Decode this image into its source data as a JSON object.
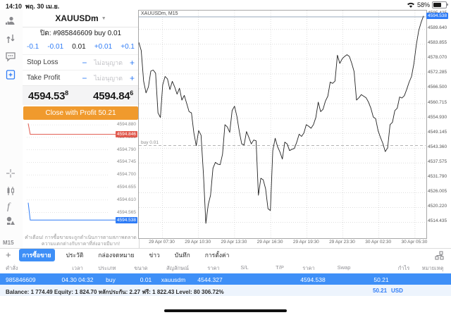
{
  "status_bar": {
    "time": "14:10",
    "date": "พฤ. 30 เม.ย.",
    "battery": "58%"
  },
  "sidebar": {
    "icons": [
      "trader-icon",
      "trade-arrows-icon",
      "chat-icon",
      "new-order-icon",
      "crosshair-icon",
      "candles-icon",
      "indicator-f-icon",
      "objects-icon"
    ],
    "timeframe": "M15"
  },
  "trade_panel": {
    "symbol": "XAUUSDm",
    "position_line": "ปิด: #985846609 buy 0.01",
    "volume": {
      "minus_big": "-0.1",
      "minus_small": "-0.01",
      "value": "0.01",
      "plus_small": "+0.01",
      "plus_big": "+0.1"
    },
    "stop_loss": {
      "label": "Stop Loss",
      "minus": "−",
      "placeholder": "ไม่อนุญาต",
      "plus": "+"
    },
    "take_profit": {
      "label": "Take Profit",
      "minus": "−",
      "placeholder": "ไม่อนุญาต",
      "plus": "+"
    },
    "bid": {
      "main": "4594.53",
      "sup": "8"
    },
    "ask": {
      "main": "4594.84",
      "sup": "6"
    },
    "close_button": "Close with Profit 50.21",
    "warning_line1": "คำเตือน! การซื้อขายจะถูกดำเนินการตามสภาพตลาด",
    "warning_line2": "ความแตกต่างกับราคาที่ส่งอาจมีมาก!"
  },
  "chart_data": [
    {
      "type": "line",
      "title": "XAUUSDm, M15",
      "x_ticks": [
        "29 Apr 07:30",
        "29 Apr 10:30",
        "29 Apr 13:30",
        "29 Apr 16:30",
        "29 Apr 19:30",
        "29 Apr 23:30",
        "30 Apr 02:30",
        "30 Apr 05:30"
      ],
      "y_ticks": [
        "4589.640",
        "4583.855",
        "4578.070",
        "4572.285",
        "4566.500",
        "4560.715",
        "4554.930",
        "4549.145",
        "4543.360",
        "4537.575",
        "4531.790",
        "4526.005",
        "4520.220",
        "4514.435"
      ],
      "y_top_partial": "4595.425",
      "current_price": 4594.538,
      "position": {
        "label": "buy 0.01",
        "price": 4544.327
      },
      "ylim": [
        4508.5,
        4597.0
      ],
      "grid": true,
      "line_color": "#222222",
      "values": [
        4584.6,
        4581.4,
        4569.5,
        4564.9,
        4567.2,
        4573.4,
        4573.8,
        4572.6,
        4557.1,
        4555.3,
        4568.1,
        4571.3,
        4570.3,
        4566.2,
        4569.4,
        4567.2,
        4564.4,
        4566.7,
        4562.1,
        4563.9,
        4560.8,
        4557.6,
        4557.1,
        4549.3,
        4544.3,
        4550.2,
        4548.4,
        4533.2,
        4514.0,
        4521.3,
        4525.0,
        4535.5,
        4537.8,
        4537.1,
        4536.9,
        4541.0,
        4552.5,
        4551.6,
        4549.5,
        4558.0,
        4559.7,
        4555.7,
        4549.8,
        4545.0,
        4544.6,
        4549.8,
        4547.5,
        4545.0,
        4546.5,
        4546.2,
        4525.0,
        4531.6,
        4531.0,
        4527.5,
        4519.7,
        4519.0,
        4542.4,
        4547.2,
        4543.9,
        4541.8,
        4539.1,
        4545.7,
        4545.0,
        4542.4,
        4542.9,
        4543.2,
        4545.7,
        4548.8,
        4547.9,
        4549.3,
        4552.5,
        4551.9,
        4551.1,
        4552.5,
        4555.3,
        4561.3,
        4557.6,
        4558.5,
        4561.7,
        4563.6,
        4569.1,
        4568.6,
        4569.5,
        4579.6,
        4576.4,
        4578.2,
        4579.1,
        4579.8,
        4579.1,
        4576.4,
        4573.2,
        4562.1,
        4563.0,
        4564.2,
        4563.6,
        4563.0,
        4561.3,
        4558.9,
        4555.5,
        4554.8,
        4550.2,
        4547.5,
        4545.2,
        4542.0,
        4543.5,
        4552.5,
        4553.4,
        4558.0,
        4558.9,
        4563.3,
        4562.9,
        4563.8,
        4566.3,
        4569.1,
        4571.3,
        4576.4,
        4583.7,
        4589.2,
        4592.4,
        4594.9
      ]
    },
    {
      "type": "line",
      "title": "tick-chart",
      "ylim": [
        4594.493,
        4594.893
      ],
      "y_ticks": [
        "4594.880",
        "4594.835",
        "4594.790",
        "4594.745",
        "4594.700",
        "4594.655",
        "4594.610",
        "4594.565"
      ],
      "ask_badge": "4594.846",
      "bid_badge": "4594.538",
      "series": [
        {
          "name": "ask",
          "color": "#e05a4e",
          "points": [
            [
              0.05,
              4594.885
            ],
            [
              0.068,
              4594.846
            ],
            [
              1.0,
              4594.846
            ]
          ]
        },
        {
          "name": "bid",
          "color": "#2f7cf6",
          "points": [
            [
              0.05,
              4594.6
            ],
            [
              0.068,
              4594.538
            ],
            [
              1.0,
              4594.538
            ]
          ]
        }
      ]
    }
  ],
  "tabs": {
    "items": [
      "การซื้อขาย",
      "ประวัติ",
      "กล่องจดหมาย",
      "ข่าว",
      "บันทึก",
      "การตั้งค่า"
    ],
    "selected": "การซื้อขาย",
    "add_label": "+"
  },
  "positions_table": {
    "columns": [
      "คำสั่ง",
      "เวลา",
      "ประเภท",
      "ขนาด",
      "สัญลักษณ์",
      "ราคา",
      "S/L",
      "T/P",
      "ราคา",
      "Swap",
      "กำไร",
      "หมายเหตุ"
    ],
    "row": {
      "order": "985846609",
      "time": "04.30 04:32",
      "type": "buy",
      "volume": "0.01",
      "symbol": "xauusdm",
      "open_price": "4544.327",
      "sl": "",
      "tp": "",
      "price": "4594.538",
      "swap": "",
      "profit": "50.21",
      "comment": ""
    },
    "total_profit": "50.21",
    "currency": "USD"
  },
  "account_bar": {
    "text": "Balance: 1 774.49 Equity: 1 824.70 หลักประกัน: 2.27 ฟรี: 1 822.43 Level: 80 306.72%"
  },
  "colors": {
    "accent_blue": "#2f7cf6",
    "row_blue": "#3e8ff7",
    "button_orange": "#f09a2d",
    "ask_red": "#e05a4e",
    "grid": "#c9c9c9"
  }
}
